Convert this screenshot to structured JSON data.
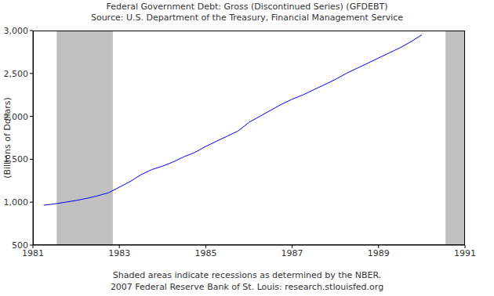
{
  "chart_data": {
    "type": "line",
    "title": "Federal Government Debt: Gross (Discontinued Series) (GFDEBT)",
    "subtitle": "Source: U.S. Department of the Treasury, Financial Management Service",
    "y_label": "(Billions of Dollars)",
    "annotations": [
      "Shaded areas indicate recessions as determined by the NBER.",
      "2007 Federal Reserve Bank of St. Louis: research.stlouisfed.org"
    ],
    "x": [
      1981.25,
      1981.5,
      1981.75,
      1982.0,
      1982.25,
      1982.5,
      1982.75,
      1983.0,
      1983.25,
      1983.5,
      1983.75,
      1984.0,
      1984.25,
      1984.5,
      1984.75,
      1985.0,
      1985.25,
      1985.5,
      1985.75,
      1986.0,
      1986.25,
      1986.5,
      1986.75,
      1987.0,
      1987.25,
      1987.5,
      1987.75,
      1988.0,
      1988.25,
      1988.5,
      1988.75,
      1989.0,
      1989.25,
      1989.5,
      1989.75,
      1990.0
    ],
    "values": [
      965,
      980,
      1000,
      1020,
      1045,
      1075,
      1110,
      1175,
      1240,
      1320,
      1380,
      1420,
      1470,
      1530,
      1580,
      1650,
      1710,
      1770,
      1830,
      1930,
      2000,
      2070,
      2140,
      2200,
      2250,
      2310,
      2370,
      2430,
      2500,
      2560,
      2620,
      2680,
      2740,
      2800,
      2870,
      2950
    ],
    "color": "#0000ff",
    "recessions": [
      [
        1981.55,
        1982.85
      ],
      [
        1990.55,
        1991
      ]
    ],
    "xlim": [
      1981,
      1991
    ],
    "xticks": [
      1981,
      1983,
      1985,
      1987,
      1989,
      1991
    ],
    "ylim": [
      500,
      3000
    ],
    "yticks": [
      500,
      {
        "value": 1000,
        "label": "1,000"
      },
      {
        "value": 1500,
        "label": "1,500"
      },
      {
        "value": 2000,
        "label": "2,000"
      },
      {
        "value": 2500,
        "label": "2,500"
      },
      {
        "value": 3000,
        "label": "3,000"
      }
    ],
    "grid": false
  }
}
